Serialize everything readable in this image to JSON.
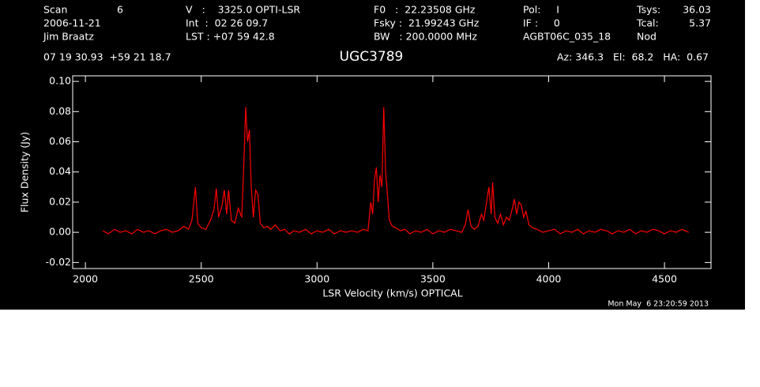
{
  "header": {
    "scan_label": "Scan",
    "scan": 6,
    "date": "2006-11-21",
    "observer": "Jim Braatz",
    "velocity": "V   :    3325.0 OPTI-LSR",
    "int": "Int  :  02 26 09.7",
    "lst": "LST : +07 59 42.8",
    "f0": "F0   :  22.23508 GHz",
    "fsky": "Fsky :  21.99243 GHz",
    "bw": "BW   : 200.0000 MHz",
    "pol": "Pol:     I",
    "if": "IF :     0",
    "project": "AGBT06C_035_18",
    "tsys_label": "Tsys:",
    "tsys": 36.03,
    "tcal_label": "Tcal:",
    "tcal": 5.37,
    "proc": "Nod",
    "coords": "07 19 30.93  +59 21 18.7",
    "azel": "Az: 346.3   El:  68.2   HA:  0.67",
    "timestamp": "Mon May  6 23:20:59 2013"
  },
  "chart_data": {
    "type": "line",
    "title": "UGC3789",
    "x_label": "LSR Velocity (km/s) OPTICAL",
    "y_label": "Flux Density (Jy)",
    "xlim": [
      1945,
      4701
    ],
    "ylim": [
      -0.024,
      0.1037
    ],
    "xticks": [
      2000,
      2500,
      3000,
      3500,
      4000,
      4500
    ],
    "yticks": [
      {
        "value": 0.1,
        "label": "0.10"
      },
      0.08,
      0.06,
      0.04,
      0.02,
      {
        "value": 0,
        "label": "0.00"
      },
      -0.02
    ],
    "series": [
      {
        "name": "UGC3789",
        "color": "#ff0000",
        "x": [
          2075,
          2100,
          2125,
          2150,
          2175,
          2200,
          2225,
          2250,
          2275,
          2300,
          2325,
          2350,
          2375,
          2400,
          2425,
          2445,
          2460,
          2475,
          2485,
          2500,
          2520,
          2540,
          2555,
          2565,
          2575,
          2590,
          2600,
          2610,
          2618,
          2630,
          2645,
          2660,
          2675,
          2685,
          2692,
          2700,
          2708,
          2716,
          2725,
          2735,
          2745,
          2755,
          2770,
          2785,
          2800,
          2820,
          2840,
          2860,
          2880,
          2900,
          2925,
          2950,
          2975,
          3000,
          3025,
          3050,
          3075,
          3100,
          3125,
          3150,
          3175,
          3200,
          3220,
          3232,
          3240,
          3248,
          3256,
          3264,
          3272,
          3280,
          3288,
          3296,
          3304,
          3312,
          3325,
          3340,
          3360,
          3380,
          3400,
          3425,
          3450,
          3475,
          3500,
          3525,
          3550,
          3575,
          3600,
          3625,
          3640,
          3652,
          3665,
          3680,
          3695,
          3710,
          3720,
          3732,
          3742,
          3752,
          3758,
          3768,
          3780,
          3792,
          3805,
          3818,
          3830,
          3842,
          3852,
          3862,
          3872,
          3882,
          3892,
          3902,
          3915,
          3930,
          3950,
          3975,
          4000,
          4025,
          4050,
          4075,
          4100,
          4125,
          4150,
          4175,
          4200,
          4225,
          4250,
          4275,
          4300,
          4325,
          4350,
          4375,
          4400,
          4425,
          4450,
          4475,
          4500,
          4525,
          4550,
          4575,
          4605
        ],
        "values": [
          0.001,
          -0.001,
          0.002,
          0.0,
          0.001,
          -0.001,
          0.002,
          0.0,
          0.001,
          -0.001,
          0.001,
          0.002,
          0.0,
          0.001,
          0.004,
          0.002,
          0.008,
          0.03,
          0.006,
          0.003,
          0.002,
          0.008,
          0.015,
          0.029,
          0.01,
          0.018,
          0.028,
          0.012,
          0.028,
          0.008,
          0.006,
          0.016,
          0.01,
          0.05,
          0.083,
          0.06,
          0.068,
          0.03,
          0.01,
          0.028,
          0.025,
          0.006,
          0.003,
          0.004,
          0.002,
          0.005,
          0.001,
          0.002,
          -0.001,
          0.001,
          0.0,
          0.002,
          -0.001,
          0.001,
          0.0,
          0.002,
          -0.001,
          0.001,
          0.0,
          0.001,
          0.0,
          0.002,
          0.001,
          0.02,
          0.012,
          0.035,
          0.043,
          0.02,
          0.038,
          0.03,
          0.083,
          0.04,
          0.025,
          0.008,
          0.004,
          0.003,
          0.001,
          0.002,
          -0.001,
          0.001,
          0.0,
          0.002,
          -0.001,
          0.001,
          0.0,
          0.002,
          0.001,
          0.0,
          0.005,
          0.015,
          0.004,
          0.002,
          0.004,
          0.012,
          0.008,
          0.02,
          0.03,
          0.012,
          0.033,
          0.01,
          0.006,
          0.012,
          0.005,
          0.01,
          0.008,
          0.015,
          0.022,
          0.012,
          0.02,
          0.018,
          0.01,
          0.014,
          0.005,
          0.003,
          0.002,
          0.0,
          0.001,
          0.002,
          -0.001,
          0.001,
          0.0,
          0.002,
          -0.001,
          0.001,
          0.0,
          0.002,
          0.001,
          -0.001,
          0.001,
          0.0,
          0.002,
          -0.001,
          0.001,
          0.0,
          0.002,
          0.001,
          -0.001,
          0.001,
          0.0,
          0.002,
          0.0
        ]
      }
    ]
  }
}
